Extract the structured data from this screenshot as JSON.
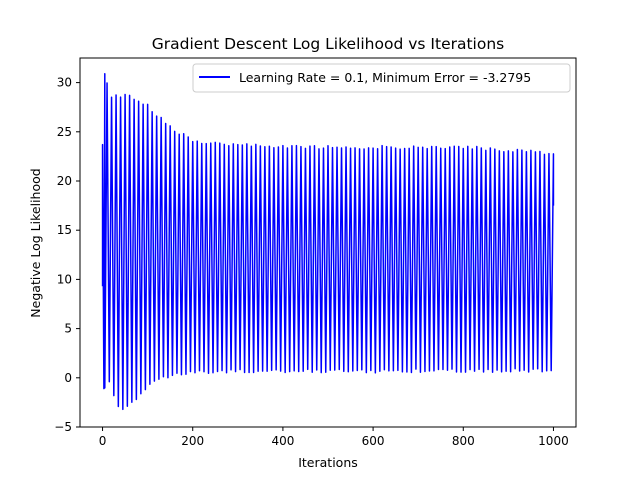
{
  "chart_data": {
    "type": "line",
    "title": "Gradient Descent Log Likelihood vs Iterations",
    "xlabel": "Iterations",
    "ylabel": "Negative Log Likelihood",
    "xlim": [
      -50,
      1050
    ],
    "ylim": [
      -5,
      32.5
    ],
    "x_ticks": [
      0,
      200,
      400,
      600,
      800,
      1000
    ],
    "y_ticks": [
      -5,
      0,
      5,
      10,
      15,
      20,
      25,
      30
    ],
    "grid": false,
    "legend_position": "top-right",
    "series": [
      {
        "name": "Learning Rate = 0.1, Minimum Error = -3.2795",
        "color": "#0000ff",
        "x_range": [
          0,
          1000
        ],
        "oscillation_period_iterations": 10,
        "peaks": [
          {
            "x": 0,
            "y": 23.7
          },
          {
            "x": 5,
            "y": 30.9
          },
          {
            "x": 10,
            "y": 30.0
          },
          {
            "x": 20,
            "y": 28.7
          },
          {
            "x": 40,
            "y": 28.8
          },
          {
            "x": 60,
            "y": 28.9
          },
          {
            "x": 80,
            "y": 28.3
          },
          {
            "x": 100,
            "y": 27.8
          },
          {
            "x": 130,
            "y": 26.5
          },
          {
            "x": 160,
            "y": 25.2
          },
          {
            "x": 180,
            "y": 25.0
          },
          {
            "x": 200,
            "y": 24.2
          },
          {
            "x": 250,
            "y": 24.0
          },
          {
            "x": 300,
            "y": 23.8
          },
          {
            "x": 500,
            "y": 23.6
          },
          {
            "x": 800,
            "y": 23.6
          },
          {
            "x": 1000,
            "y": 23.0
          }
        ],
        "troughs": [
          {
            "x": 0,
            "y": 9.3
          },
          {
            "x": 3,
            "y": -1.1
          },
          {
            "x": 20,
            "y": -0.5
          },
          {
            "x": 30,
            "y": -3.2
          },
          {
            "x": 50,
            "y": -3.3
          },
          {
            "x": 60,
            "y": -2.8
          },
          {
            "x": 80,
            "y": -2.0
          },
          {
            "x": 100,
            "y": -1.0
          },
          {
            "x": 130,
            "y": -0.3
          },
          {
            "x": 160,
            "y": 0.2
          },
          {
            "x": 200,
            "y": 0.4
          },
          {
            "x": 300,
            "y": 0.5
          },
          {
            "x": 600,
            "y": 0.5
          },
          {
            "x": 1000,
            "y": 0.6
          }
        ],
        "final_y": 17.5,
        "minimum_error": -3.2795
      }
    ]
  }
}
